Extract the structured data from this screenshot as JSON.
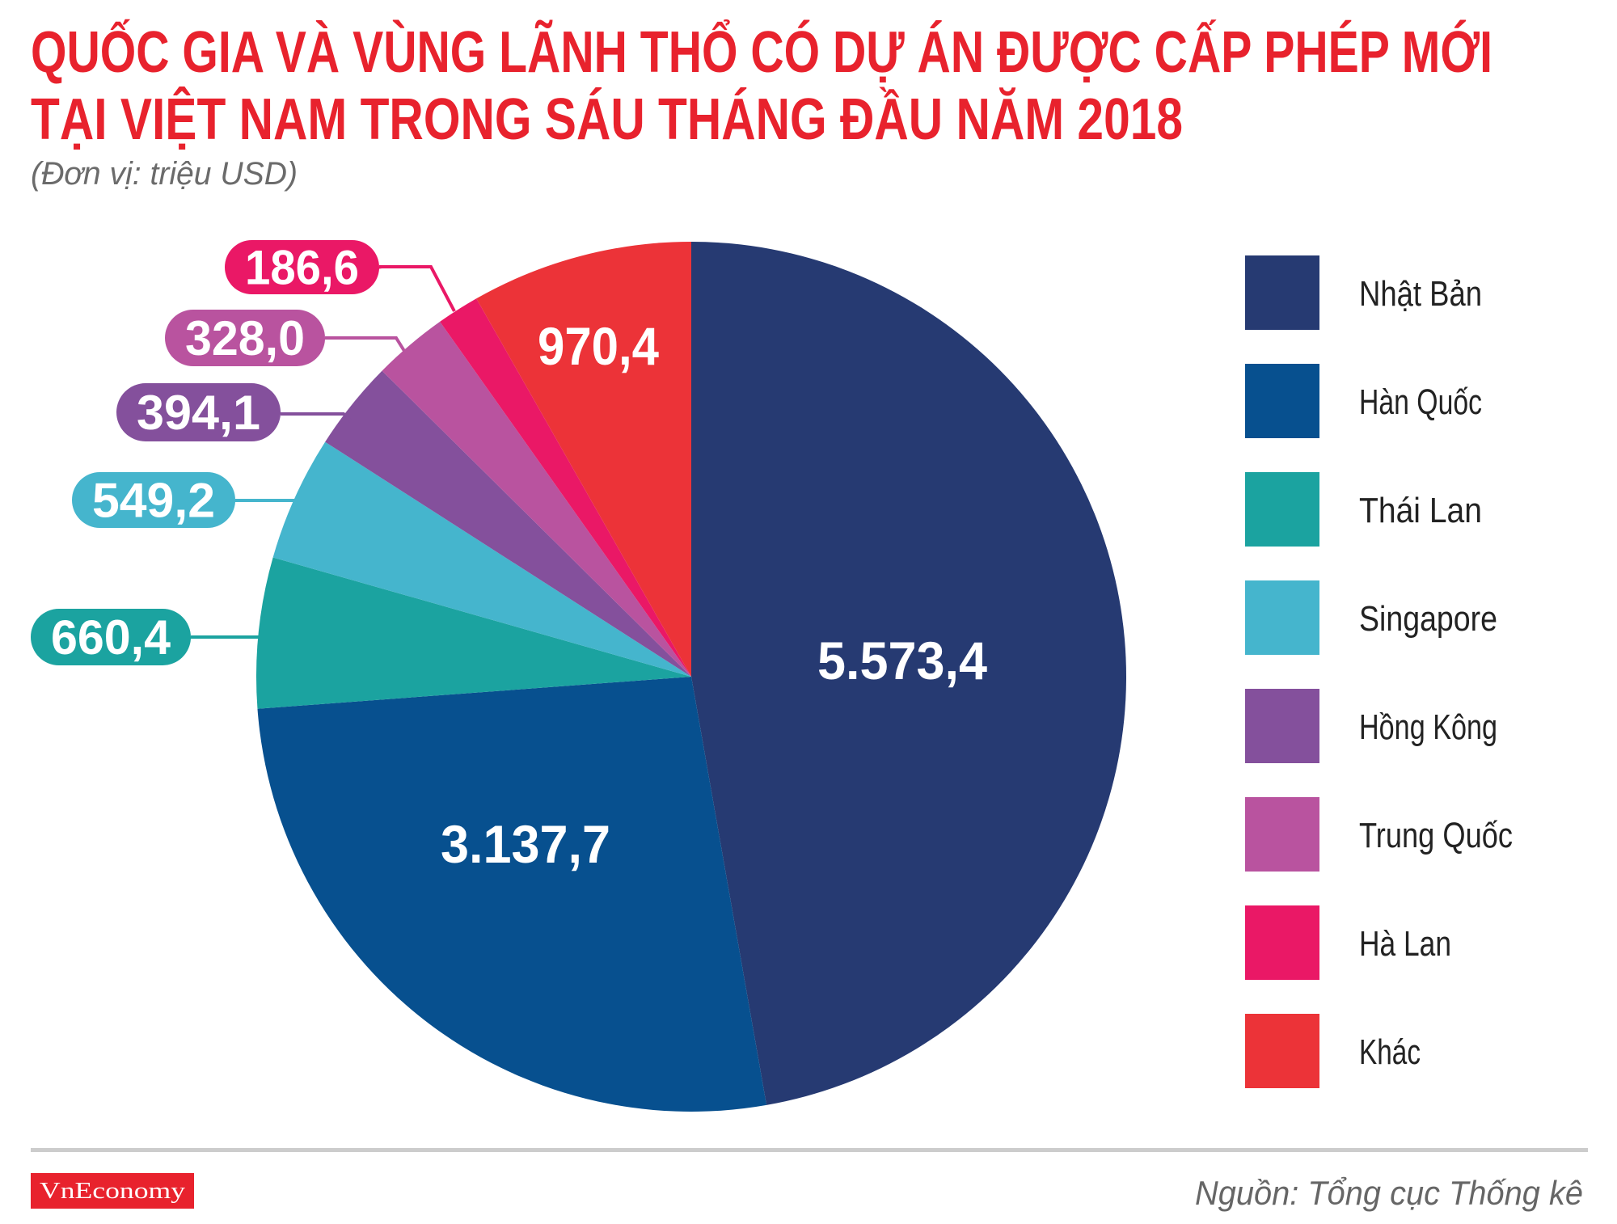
{
  "title_line1": "QUỐC GIA VÀ VÙNG LÃNH THỔ CÓ DỰ ÁN ĐƯỢC CẤP PHÉP MỚI",
  "title_line2": "TẠI VIỆT NAM TRONG SÁU THÁNG ĐẦU NĂM 2018",
  "subtitle": "(Đơn vị: triệu USD)",
  "source": "Nguồn: Tổng cục Thống kê",
  "logo_text": "VnEconomy",
  "colors": {
    "title": "#e8222d",
    "logo_bg": "#e8222d",
    "divider": "#cccccc"
  },
  "chart_data": {
    "type": "pie",
    "title": "QUỐC GIA VÀ VÙNG LÃNH THỔ CÓ DỰ ÁN ĐƯỢC CẤP PHÉP MỚI TẠI VIỆT NAM TRONG SÁU THÁNG ĐẦU NĂM 2018",
    "unit": "(Đơn vị: triệu USD)",
    "legend_position": "right",
    "start": "12 o'clock, clockwise",
    "slices": [
      {
        "name": "Nhật Bản",
        "value": 5573.4,
        "label": "5.573,4",
        "color": "#263a72"
      },
      {
        "name": "Hàn Quốc",
        "value": 3137.7,
        "label": "3.137,7",
        "color": "#07508f"
      },
      {
        "name": "Thái Lan",
        "value": 660.4,
        "label": "660,4",
        "color": "#1ba3a0"
      },
      {
        "name": "Singapore",
        "value": 549.2,
        "label": "549,2",
        "color": "#45b5cd"
      },
      {
        "name": "Hồng Kông",
        "value": 394.1,
        "label": "394,1",
        "color": "#84509c"
      },
      {
        "name": "Trung Quốc",
        "value": 328.0,
        "label": "328,0",
        "color": "#b9539f"
      },
      {
        "name": "Hà Lan",
        "value": 186.6,
        "label": "186,6",
        "color": "#ea1866"
      },
      {
        "name": "Khác",
        "value": 970.4,
        "label": "970,4",
        "color": "#ec3338"
      }
    ]
  }
}
